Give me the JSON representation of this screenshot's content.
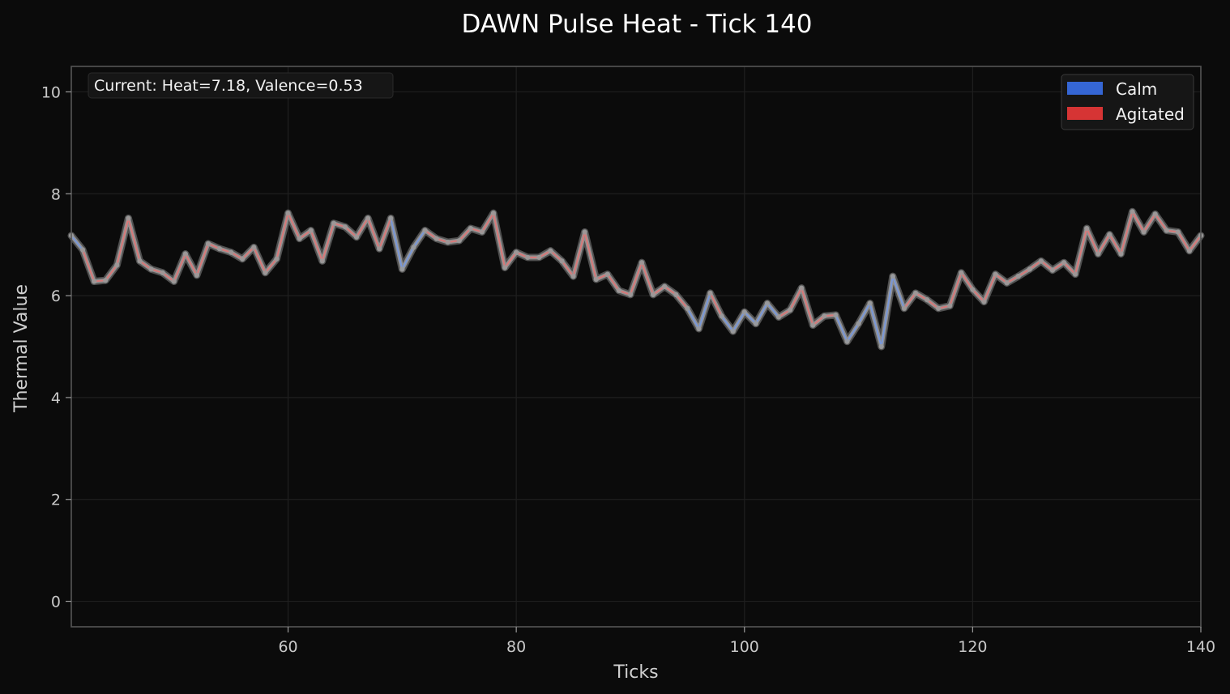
{
  "chart_data": {
    "type": "line",
    "title": "DAWN Pulse Heat - Tick 140",
    "xlabel": "Ticks",
    "ylabel": "Thermal Value",
    "xlim": [
      41,
      140
    ],
    "ylim": [
      -0.5,
      10.5
    ],
    "xticks": [
      60,
      80,
      100,
      120,
      140
    ],
    "yticks": [
      0,
      2,
      4,
      6,
      8,
      10
    ],
    "grid": true,
    "legend_position": "top-right",
    "annotation": "Current: Heat=7.18, Valence=0.53",
    "legend": [
      {
        "label": "Calm",
        "color": "#3566d4"
      },
      {
        "label": "Agitated",
        "color": "#d63434"
      }
    ],
    "x": [
      41,
      42,
      43,
      44,
      45,
      46,
      47,
      48,
      49,
      50,
      51,
      52,
      53,
      54,
      55,
      56,
      57,
      58,
      59,
      60,
      61,
      62,
      63,
      64,
      65,
      66,
      67,
      68,
      69,
      70,
      71,
      72,
      73,
      74,
      75,
      76,
      77,
      78,
      79,
      80,
      81,
      82,
      83,
      84,
      85,
      86,
      87,
      88,
      89,
      90,
      91,
      92,
      93,
      94,
      95,
      96,
      97,
      98,
      99,
      100,
      101,
      102,
      103,
      104,
      105,
      106,
      107,
      108,
      109,
      110,
      111,
      112,
      113,
      114,
      115,
      116,
      117,
      118,
      119,
      120,
      121,
      122,
      123,
      124,
      125,
      126,
      127,
      128,
      129,
      130,
      131,
      132,
      133,
      134,
      135,
      136,
      137,
      138,
      139,
      140
    ],
    "series": [
      {
        "values": [
          7.18,
          6.9,
          6.28,
          6.3,
          6.6,
          7.52,
          6.68,
          6.52,
          6.45,
          6.28,
          6.82,
          6.4,
          7.02,
          6.92,
          6.85,
          6.72,
          6.95,
          6.45,
          6.72,
          7.62,
          7.12,
          7.28,
          6.68,
          7.42,
          7.35,
          7.15,
          7.52,
          6.92,
          7.52,
          6.52,
          6.95,
          7.28,
          7.12,
          7.05,
          7.08,
          7.32,
          7.25,
          7.62,
          6.55,
          6.85,
          6.75,
          6.75,
          6.88,
          6.68,
          6.38,
          7.25,
          6.32,
          6.42,
          6.1,
          6.02,
          6.65,
          6.02,
          6.18,
          6.02,
          5.75,
          5.35,
          6.05,
          5.6,
          5.3,
          5.68,
          5.45,
          5.85,
          5.58,
          5.72,
          6.15,
          5.42,
          5.6,
          5.62,
          5.1,
          5.45,
          5.85,
          5.0,
          6.38,
          5.75,
          6.05,
          5.92,
          5.75,
          5.8,
          6.45,
          6.12,
          5.88,
          6.42,
          6.25,
          6.38,
          6.52,
          6.68,
          6.5,
          6.65,
          6.42,
          7.32,
          6.82,
          7.2,
          6.82,
          7.65,
          7.25,
          7.6,
          7.28,
          7.25,
          6.88,
          7.18
        ],
        "valence": [
          0.2,
          0.6,
          0.6,
          0.6,
          0.6,
          0.6,
          0.6,
          0.6,
          0.6,
          0.6,
          0.6,
          0.6,
          0.6,
          0.6,
          0.6,
          0.6,
          0.6,
          0.6,
          0.6,
          0.6,
          0.6,
          0.6,
          0.6,
          0.6,
          0.6,
          0.6,
          0.6,
          0.6,
          0.6,
          0.3,
          0.2,
          0.6,
          0.6,
          0.6,
          0.6,
          0.6,
          0.6,
          0.6,
          0.6,
          0.6,
          0.6,
          0.6,
          0.6,
          0.6,
          0.6,
          0.6,
          0.6,
          0.6,
          0.6,
          0.6,
          0.6,
          0.6,
          0.6,
          0.6,
          0.6,
          0.2,
          0.6,
          0.6,
          0.2,
          0.2,
          0.6,
          0.2,
          0.6,
          0.6,
          0.6,
          0.6,
          0.6,
          0.6,
          0.2,
          0.2,
          0.6,
          0.2,
          0.2,
          0.6,
          0.6,
          0.6,
          0.6,
          0.6,
          0.6,
          0.6,
          0.6,
          0.6,
          0.6,
          0.6,
          0.6,
          0.6,
          0.6,
          0.6,
          0.6,
          0.6,
          0.6,
          0.6,
          0.6,
          0.6,
          0.6,
          0.6,
          0.6,
          0.6,
          0.6,
          0.53
        ]
      }
    ]
  }
}
